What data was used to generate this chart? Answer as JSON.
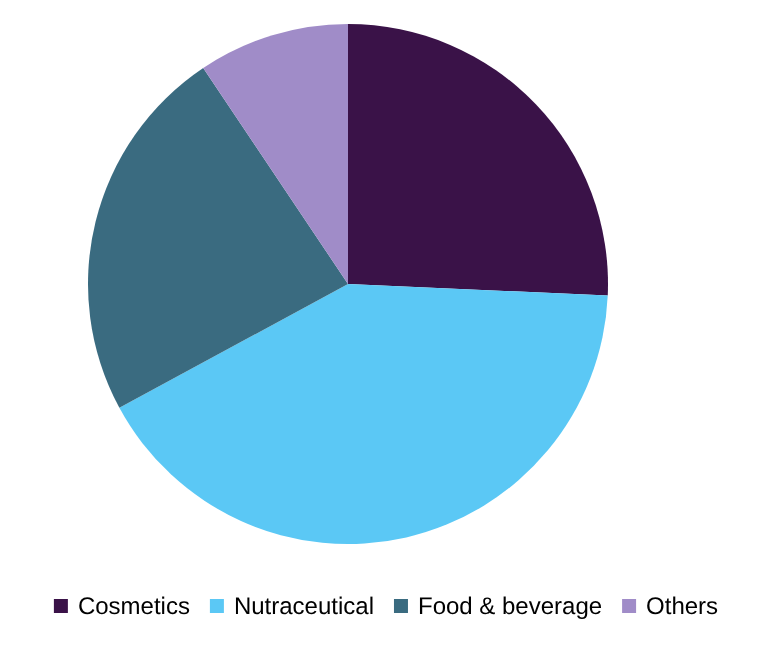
{
  "chart_data": {
    "type": "pie",
    "categories": [
      "Cosmetics",
      "Nutraceutical",
      "Food & beverage",
      "Others"
    ],
    "values": [
      25.7,
      41.4,
      23.5,
      9.4
    ],
    "colors": [
      "#3a1248",
      "#5bc8f5",
      "#3a6b80",
      "#a08cc8"
    ],
    "legend": "bottom"
  }
}
